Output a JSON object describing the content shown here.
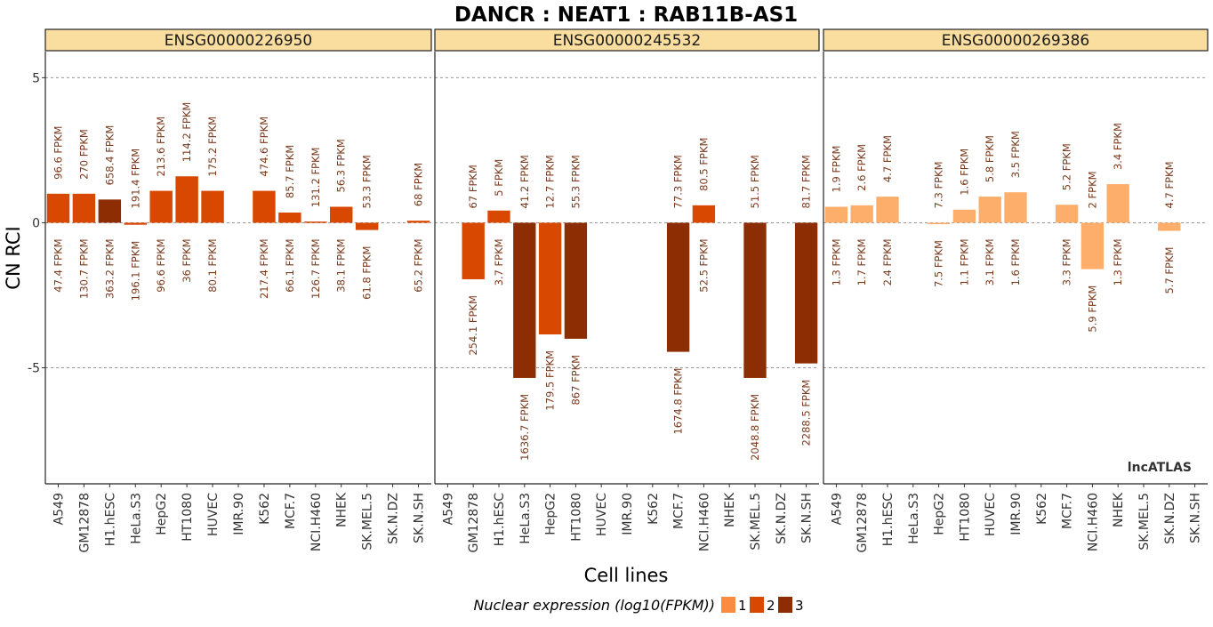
{
  "chart_data": {
    "type": "bar",
    "title": "DANCR : NEAT1 : RAB11B-AS1",
    "xlabel": "Cell lines",
    "ylabel": "CN RCI",
    "ylim": [
      -9,
      5.9
    ],
    "yticks": [
      5,
      0,
      -5
    ],
    "grid_lines_at": [
      5,
      0,
      -5
    ],
    "watermark": "lncATLAS",
    "categories": [
      "A549",
      "GM12878",
      "H1.hESC",
      "HeLa.S3",
      "HepG2",
      "HT1080",
      "HUVEC",
      "IMR.90",
      "K562",
      "MCF.7",
      "NCI.H460",
      "NHEK",
      "SK.MEL.5",
      "SK.N.DZ",
      "SK.N.SH"
    ],
    "legend": {
      "title": "Nuclear expression (log10(FPKM))",
      "position": "bottom",
      "entries": [
        {
          "label": "1",
          "color": "#f98c40"
        },
        {
          "label": "2",
          "color": "#d94801"
        },
        {
          "label": "3",
          "color": "#8c2d04"
        }
      ]
    },
    "panels": [
      {
        "name": "ENSG00000226950",
        "values": [
          1.0,
          1.0,
          0.8,
          -0.07,
          1.1,
          1.6,
          1.1,
          null,
          1.1,
          0.35,
          0.04,
          0.55,
          -0.25,
          null,
          0.07
        ],
        "color_class": [
          2,
          2,
          3,
          2,
          2,
          2,
          2,
          null,
          2,
          2,
          2,
          2,
          2,
          null,
          2
        ],
        "top_labels": [
          "96.6 FPKM",
          "270 FPKM",
          "658.4 FPKM",
          "191.4 FPKM",
          "213.6 FPKM",
          "114.2 FPKM",
          "175.2 FPKM",
          "",
          "474.6 FPKM",
          "85.7 FPKM",
          "131.2 FPKM",
          "56.3 FPKM",
          "53.3 FPKM",
          "",
          "68 FPKM"
        ],
        "bottom_labels": [
          "47.4 FPKM",
          "130.7 FPKM",
          "363.2 FPKM",
          "196.1 FPKM",
          "96.6 FPKM",
          "36 FPKM",
          "80.1 FPKM",
          "",
          "217.4 FPKM",
          "66.1 FPKM",
          "126.7 FPKM",
          "38.1 FPKM",
          "61.8 FPKM",
          "",
          "65.2 FPKM"
        ]
      },
      {
        "name": "ENSG00000245532",
        "values": [
          null,
          -1.95,
          0.42,
          -5.35,
          -3.85,
          -4.0,
          null,
          null,
          null,
          -4.45,
          0.6,
          null,
          -5.35,
          null,
          -4.85
        ],
        "color_class": [
          null,
          2,
          2,
          3,
          2,
          3,
          null,
          null,
          null,
          3,
          2,
          null,
          3,
          null,
          3
        ],
        "top_labels": [
          "",
          "67 FPKM",
          "5 FPKM",
          "41.2 FPKM",
          "12.7 FPKM",
          "55.3 FPKM",
          "",
          "",
          "",
          "77.3 FPKM",
          "80.5 FPKM",
          "",
          "51.5 FPKM",
          "",
          "81.7 FPKM"
        ],
        "bottom_labels": [
          "",
          "254.1 FPKM",
          "3.7 FPKM",
          "1636.7 FPKM",
          "179.5 FPKM",
          "867 FPKM",
          "",
          "",
          "",
          "1674.8 FPKM",
          "52.5 FPKM",
          "",
          "2048.8 FPKM",
          "",
          "2288.5 FPKM"
        ]
      },
      {
        "name": "ENSG00000269386",
        "values": [
          0.55,
          0.6,
          0.9,
          null,
          -0.05,
          0.45,
          0.9,
          1.05,
          null,
          0.62,
          -1.6,
          1.33,
          null,
          -0.28,
          null
        ],
        "color_class": [
          1,
          1,
          1,
          null,
          1,
          1,
          1,
          1,
          null,
          1,
          1,
          1,
          null,
          1,
          null
        ],
        "top_labels": [
          "1.9 FPKM",
          "2.6 FPKM",
          "4.7 FPKM",
          "",
          "7.3 FPKM",
          "1.6 FPKM",
          "5.8 FPKM",
          "3.5 FPKM",
          "",
          "5.2 FPKM",
          "2 FPKM",
          "3.4 FPKM",
          "",
          "4.7 FPKM",
          ""
        ],
        "bottom_labels": [
          "1.3 FPKM",
          "1.7 FPKM",
          "2.4 FPKM",
          "",
          "7.5 FPKM",
          "1.1 FPKM",
          "3.1 FPKM",
          "1.6 FPKM",
          "",
          "3.3 FPKM",
          "5.9 FPKM",
          "1.3 FPKM",
          "",
          "5.7 FPKM",
          ""
        ]
      }
    ]
  },
  "palette": {
    "bar_class_1": "#f98c40",
    "bar_class_1_light": "#fdae6b",
    "bar_class_2": "#d94801",
    "bar_class_3": "#8c2d04",
    "strip_fill": "#f9dea0",
    "label_color": "#7a3a1c"
  }
}
